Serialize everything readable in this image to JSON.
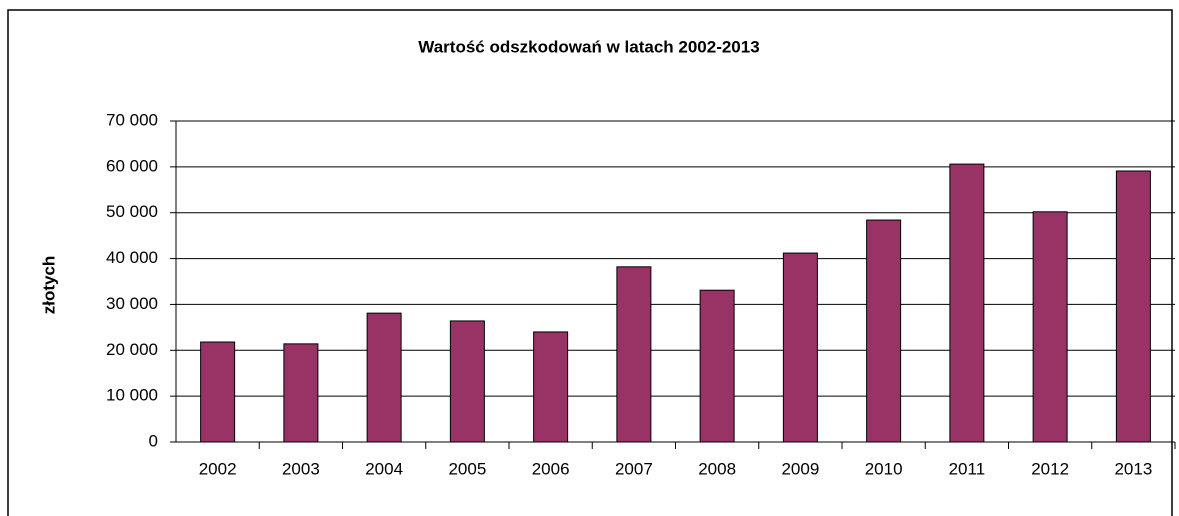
{
  "chart_data": {
    "type": "bar",
    "title": "Wartość odszkodowań w latach 2002-2013",
    "y_label": "złotych",
    "categories": [
      "2002",
      "2003",
      "2004",
      "2005",
      "2006",
      "2007",
      "2008",
      "2009",
      "2010",
      "2011",
      "2012",
      "2013"
    ],
    "values": [
      21800,
      21400,
      28100,
      26400,
      24000,
      38200,
      33100,
      41200,
      48400,
      60600,
      50200,
      59100
    ],
    "color": "#993366",
    "ylim": [
      0,
      70000
    ],
    "yticks": [
      0,
      {
        "value": 10000,
        "label": "10 000"
      },
      {
        "value": 20000,
        "label": "20 000"
      },
      {
        "value": 30000,
        "label": "30 000"
      },
      {
        "value": 40000,
        "label": "40 000"
      },
      {
        "value": 50000,
        "label": "50 000"
      },
      {
        "value": 60000,
        "label": "60 000"
      },
      {
        "value": 70000,
        "label": "70 000"
      }
    ],
    "grid": true
  }
}
